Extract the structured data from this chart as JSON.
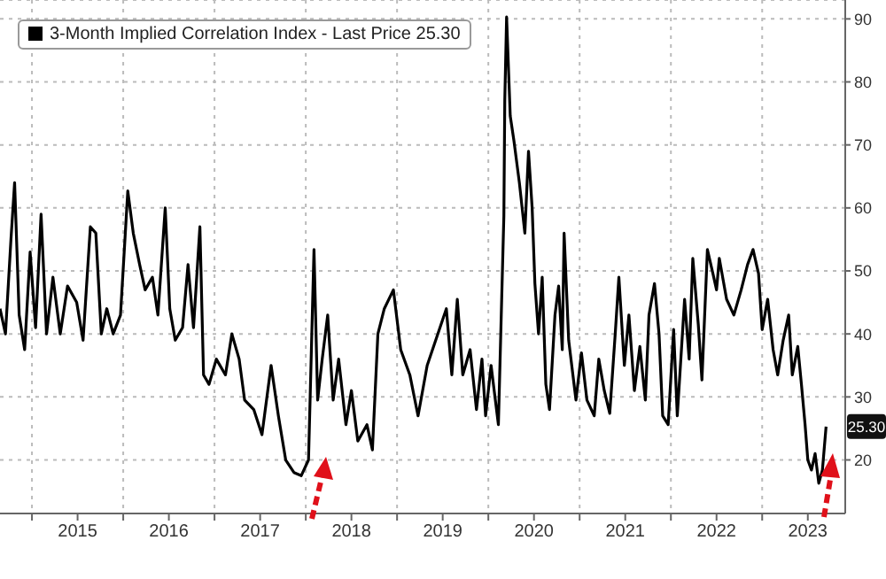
{
  "chart_data": {
    "type": "line",
    "legend": "top left",
    "grid": true,
    "line_style": "solid",
    "marker": "none",
    "xlim": [
      2014.65,
      2023.91
    ],
    "xticks": [
      {
        "value": 2015,
        "label": null
      },
      {
        "value": 2015.5,
        "label": "2015"
      },
      {
        "value": 2016,
        "label": null
      },
      {
        "value": 2016.5,
        "label": "2016"
      },
      {
        "value": 2017,
        "label": null
      },
      {
        "value": 2017.5,
        "label": "2017"
      },
      {
        "value": 2018,
        "label": null
      },
      {
        "value": 2018.5,
        "label": "2018"
      },
      {
        "value": 2019,
        "label": null
      },
      {
        "value": 2019.5,
        "label": "2019"
      },
      {
        "value": 2020,
        "label": null
      },
      {
        "value": 2020.5,
        "label": "2020"
      },
      {
        "value": 2021,
        "label": null
      },
      {
        "value": 2021.5,
        "label": "2021"
      },
      {
        "value": 2022,
        "label": null
      },
      {
        "value": 2022.5,
        "label": "2022"
      },
      {
        "value": 2023,
        "label": null
      },
      {
        "value": 2023.5,
        "label": "2023"
      }
    ],
    "ylim": [
      11.5,
      93
    ],
    "yticks": [
      20,
      30,
      40,
      50,
      60,
      70,
      80,
      90
    ],
    "annotations": [
      {
        "text": "25.30",
        "y": 25.3
      }
    ],
    "x": [
      2014.65,
      2014.71,
      2014.77,
      2014.81,
      2014.86,
      2014.92,
      2014.98,
      2015.04,
      2015.1,
      2015.16,
      2015.23,
      2015.31,
      2015.39,
      2015.49,
      2015.56,
      2015.64,
      2015.7,
      2015.76,
      2015.82,
      2015.89,
      2015.97,
      2016.05,
      2016.11,
      2016.18,
      2016.24,
      2016.32,
      2016.38,
      2016.46,
      2016.51,
      2016.57,
      2016.65,
      2016.71,
      2016.77,
      2016.84,
      2016.88,
      2016.94,
      2017.02,
      2017.12,
      2017.19,
      2017.27,
      2017.33,
      2017.43,
      2017.52,
      2017.62,
      2017.7,
      2017.78,
      2017.87,
      2017.95,
      2018.03,
      2018.09,
      2018.13,
      2018.18,
      2018.24,
      2018.3,
      2018.36,
      2018.44,
      2018.5,
      2018.57,
      2018.67,
      2018.73,
      2018.79,
      2018.86,
      2018.96,
      2019.04,
      2019.14,
      2019.23,
      2019.33,
      2019.54,
      2019.6,
      2019.66,
      2019.72,
      2019.8,
      2019.87,
      2019.93,
      2019.97,
      2020.03,
      2020.11,
      2020.17,
      2020.18,
      2020.2,
      2020.24,
      2020.28,
      2020.34,
      2020.4,
      2020.44,
      2020.48,
      2020.51,
      2020.55,
      2020.59,
      2020.63,
      2020.67,
      2020.73,
      2020.77,
      2020.81,
      2020.83,
      2020.88,
      2020.96,
      2021.02,
      2021.08,
      2021.16,
      2021.21,
      2021.27,
      2021.33,
      2021.39,
      2021.43,
      2021.49,
      2021.54,
      2021.6,
      2021.66,
      2021.72,
      2021.76,
      2021.82,
      2021.87,
      2021.91,
      2021.97,
      2022.03,
      2022.07,
      2022.15,
      2022.2,
      2022.24,
      2022.3,
      2022.34,
      2022.4,
      2022.46,
      2022.5,
      2022.53,
      2022.61,
      2022.69,
      2022.77,
      2022.84,
      2022.9,
      2022.96,
      2023.0,
      2023.06,
      2023.12,
      2023.17,
      2023.23,
      2023.29,
      2023.33,
      2023.39,
      2023.43,
      2023.47,
      2023.5,
      2023.54,
      2023.58,
      2023.62,
      2023.66,
      2023.7
    ],
    "series": [
      {
        "name": "3-Month Implied Correlation Index - Last Price 25.30",
        "color": "#000000",
        "values": [
          44,
          40,
          55,
          64,
          43,
          37.5,
          53,
          41,
          59,
          40,
          49,
          40,
          47.6,
          45,
          39,
          57,
          56,
          40,
          44,
          40,
          43,
          62.7,
          56,
          51,
          47,
          49,
          43,
          60,
          44,
          39,
          41,
          51,
          41,
          57,
          33.5,
          32,
          36,
          33.5,
          40,
          36,
          29.5,
          28,
          24,
          35,
          27,
          20,
          18,
          17.5,
          20,
          53.4,
          29.5,
          36,
          43,
          29.5,
          36,
          25.6,
          31,
          23,
          25.6,
          21.6,
          40,
          44,
          47,
          37.5,
          33.5,
          27,
          35,
          44,
          33.5,
          45.5,
          33.5,
          37.5,
          28,
          36,
          27,
          35,
          25.6,
          58.7,
          77,
          90.3,
          74.6,
          70.7,
          64,
          56,
          69,
          60,
          48,
          40,
          49,
          32,
          28,
          43,
          47.6,
          37.5,
          56,
          39,
          29.5,
          37,
          29.5,
          27,
          36,
          31,
          27.4,
          40,
          49,
          35,
          43,
          31,
          38,
          29.5,
          43,
          48,
          40,
          27,
          25.6,
          40.7,
          27,
          45.5,
          36,
          52,
          41.5,
          32.7,
          53.4,
          49.6,
          47,
          52,
          45.5,
          43,
          47,
          51,
          53.4,
          49.6,
          40.7,
          45.5,
          37.5,
          33.5,
          39,
          43,
          33.5,
          38,
          32,
          25.6,
          20,
          18.4,
          21,
          16.3,
          18.4,
          25.3
        ]
      }
    ]
  }
}
